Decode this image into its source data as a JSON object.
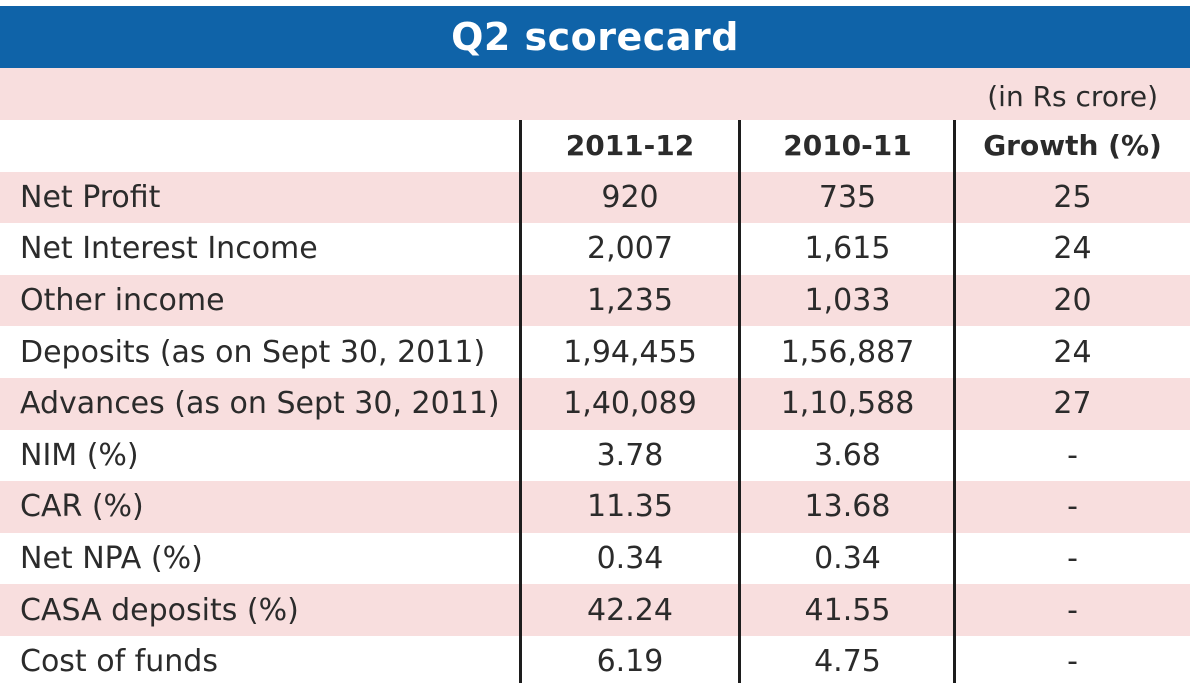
{
  "title": "Q2 scorecard",
  "unit_note": "(in Rs crore)",
  "columns": [
    "2011-12",
    "2010-11",
    "Growth (%)"
  ],
  "rows": [
    {
      "label": "Net Profit",
      "v2011": "920",
      "v2010": "735",
      "growth": "25"
    },
    {
      "label": "Net Interest Income",
      "v2011": "2,007",
      "v2010": "1,615",
      "growth": "24"
    },
    {
      "label": "Other income",
      "v2011": "1,235",
      "v2010": "1,033",
      "growth": "20"
    },
    {
      "label": "Deposits (as on Sept 30, 2011)",
      "v2011": "1,94,455",
      "v2010": "1,56,887",
      "growth": "24"
    },
    {
      "label": "Advances (as on Sept 30, 2011)",
      "v2011": "1,40,089",
      "v2010": "1,10,588",
      "growth": "27"
    },
    {
      "label": "NIM (%)",
      "v2011": "3.78",
      "v2010": "3.68",
      "growth": "-"
    },
    {
      "label": "CAR (%)",
      "v2011": "11.35",
      "v2010": "13.68",
      "growth": "-"
    },
    {
      "label": "Net NPA (%)",
      "v2011": "0.34",
      "v2010": "0.34",
      "growth": "-"
    },
    {
      "label": "CASA deposits (%)",
      "v2011": "42.24",
      "v2010": "41.55",
      "growth": "-"
    },
    {
      "label": "Cost of funds",
      "v2011": "6.19",
      "v2010": "4.75",
      "growth": "-"
    }
  ],
  "colors": {
    "title_bar": "#0f63a8",
    "band_pink": "#f8dede",
    "band_white": "#ffffff"
  }
}
